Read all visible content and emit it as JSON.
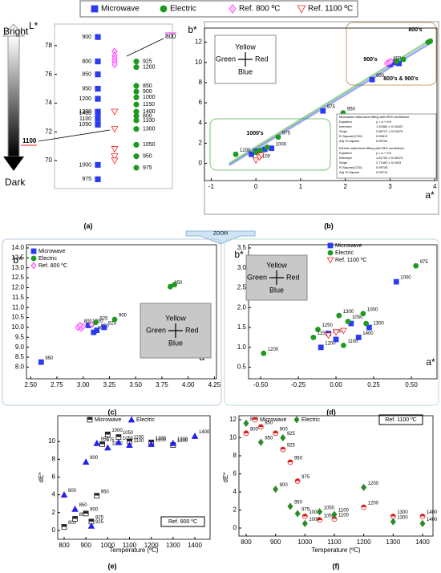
{
  "chart_data": [
    {
      "type": "strip",
      "caption": "(a)",
      "y_label": "L*",
      "top_label": "Bright",
      "bottom_label": "Dark",
      "ylim": [
        68.05,
        79.5
      ],
      "yticks": [
        70,
        72,
        74,
        76,
        78
      ],
      "annotations": [
        "800",
        "1100"
      ],
      "series": [
        {
          "name": "Microwave",
          "color": "#2b3cf0",
          "marker": "square",
          "values": [
            78.6,
            76.9,
            76.0,
            75.0,
            74.3,
            73.4,
            73.3,
            72.9,
            72.5,
            69.7,
            68.7
          ],
          "labels": [
            "900",
            "800",
            "850",
            "950",
            "1200",
            "1300",
            "1400",
            "1100",
            "1050",
            "1000",
            "975"
          ]
        },
        {
          "name": "Electric",
          "color": "#1e9a1e",
          "marker": "circle",
          "values": [
            76.9,
            76.5,
            74.8,
            75.2,
            74.4,
            73.9,
            73.4,
            73.1,
            72.8,
            72.2,
            71.1,
            70.3,
            69.5
          ],
          "labels": [
            "925",
            "1200",
            "900",
            "850",
            "1000",
            "1150",
            "1400",
            "800",
            "1100",
            "1300",
            "1050",
            "950",
            "975"
          ]
        },
        {
          "name": "Ref. 800 ºC",
          "color": "#ff33ff",
          "marker": "diamond",
          "values": [
            77.6,
            77.3,
            77.1,
            76.9,
            76.7
          ]
        },
        {
          "name": "Ref. 1100 ºC",
          "color": "#ff2020",
          "marker": "tri-down",
          "values": [
            73.4,
            72.2,
            70.8,
            70.3,
            70.0
          ]
        }
      ]
    },
    {
      "type": "scatter",
      "caption": "(b)",
      "x_label": "a*",
      "y_label": "b*",
      "xlim": [
        -1.15,
        4.05
      ],
      "xticks": [
        -1,
        0,
        1,
        2,
        3,
        4
      ],
      "ylim": [
        -1.7,
        13.4
      ],
      "yticks": [
        0,
        2,
        4,
        6,
        8,
        10,
        12
      ],
      "compass": {
        "top": "Yellow",
        "left": "Green",
        "right": "Red",
        "bottom": "Blue"
      },
      "annotations": [
        "800's",
        "900's",
        "800's & 900's",
        "1000's"
      ],
      "fit_tables": [
        {
          "title": "Microwave data linear fitting with 95% confidence",
          "rows": [
            [
              "Equation",
              "y = a + b*x"
            ],
            [
              "Intercept",
              "1.42684 ± 0.04022"
            ],
            [
              "Slope",
              "2.68727 ± 0.03479"
            ],
            [
              "R-Square(COD)",
              "0.99812"
            ],
            [
              "Adj. R-Square",
              "0.99794"
            ]
          ]
        },
        {
          "title": "Electric data linear fitting with 95% confidence",
          "rows": [
            [
              "Equation",
              "y = a + b*x"
            ],
            [
              "Intercept",
              "1.61702 ± 0.08474"
            ],
            [
              "Slope",
              "2.71462 ± 0.0403"
            ],
            [
              "R-Square(COD)",
              "0.99736"
            ],
            [
              "Adj. R-Square",
              "0.99714"
            ]
          ]
        }
      ],
      "series": [
        {
          "color": "#2b3cf0",
          "marker": "square",
          "fit": {
            "intercept": 1.42684,
            "slope": 2.68727
          },
          "x": [
            1.5,
            2.6,
            3.0,
            3.1,
            3.2,
            0.0,
            0.2,
            0.35,
            -0.1
          ],
          "values": [
            5.2,
            8.3,
            9.8,
            10.0,
            9.9,
            1.2,
            1.4,
            1.5,
            0.9
          ],
          "labels": [
            "975",
            "950",
            null,
            null,
            null,
            null,
            null,
            "1000",
            null
          ]
        },
        {
          "color": "#1e9a1e",
          "marker": "circle",
          "fit": {
            "intercept": 1.61702,
            "slope": 2.71462
          },
          "x": [
            3.85,
            3.9,
            3.3,
            3.15,
            1.95,
            0.5,
            -0.45,
            0.0,
            0.1,
            0.25
          ],
          "values": [
            12.0,
            12.1,
            10.3,
            10.1,
            5.0,
            2.6,
            0.9,
            1.1,
            1.3,
            1.6
          ],
          "labels": [
            null,
            null,
            null,
            null,
            "950",
            "975",
            "1200",
            null,
            null,
            null
          ]
        },
        {
          "color": "#ff33ff",
          "marker": "diamond",
          "x": [
            2.93,
            2.98,
            3.02
          ],
          "values": [
            9.9,
            10.0,
            10.1
          ],
          "labels": [
            null,
            "800",
            null
          ]
        },
        {
          "color": "#ff2020",
          "marker": "tri-down",
          "x": [
            0.0,
            0.08,
            0.12
          ],
          "values": [
            0.3,
            0.6,
            0.8
          ],
          "labels": [
            "1100",
            null,
            null
          ]
        }
      ]
    },
    {
      "type": "scatter",
      "caption": "(c)",
      "x_label": "a*",
      "y_label": "b*",
      "xlim": [
        2.46,
        4.27
      ],
      "xticks": [
        {
          "value": 2.5,
          "label": "2.50"
        },
        2.75,
        {
          "value": 3,
          "label": "3.00"
        },
        3.25,
        {
          "value": 3.5,
          "label": "3.50"
        },
        3.75,
        {
          "value": 4,
          "label": "4.00"
        },
        4.25
      ],
      "ylim": [
        7.41,
        14.16
      ],
      "yticks": [
        {
          "value": 8,
          "label": "8.0"
        },
        8.5,
        {
          "value": 9,
          "label": "9.0"
        },
        9.5,
        {
          "value": 10,
          "label": "10.0"
        },
        10.5,
        {
          "value": 11,
          "label": "11.0"
        },
        11.5,
        {
          "value": 12,
          "label": "12.0"
        },
        12.5,
        {
          "value": 13,
          "label": "13.0"
        },
        13.5,
        {
          "value": 14,
          "label": "14.0"
        }
      ],
      "compass": {
        "top": "Yellow",
        "left": "Green",
        "right": "Red",
        "bottom": "Blue"
      },
      "series": [
        {
          "name": "Microwave",
          "color": "#2b3cf0",
          "marker": "square",
          "x": [
            2.6,
            3.1,
            3.13,
            3.2,
            3.05
          ],
          "values": [
            8.25,
            9.75,
            9.85,
            10.0,
            10.1
          ],
          "labels": [
            "950",
            "900",
            "850",
            "925",
            "1000"
          ]
        },
        {
          "name": "Electric",
          "color": "#1e9a1e",
          "marker": "circle",
          "x": [
            3.83,
            3.87,
            3.3,
            3.12,
            3.08
          ],
          "values": [
            12.05,
            12.15,
            10.4,
            10.25,
            10.15
          ],
          "labels": [
            "850",
            null,
            "900",
            "925",
            null
          ]
        },
        {
          "name": "Ref. 800 ºC",
          "color": "#ff33ff",
          "marker": "diamond",
          "x": [
            2.95,
            2.98,
            3.0,
            2.97,
            3.08
          ],
          "values": [
            10.0,
            9.95,
            10.05,
            10.1,
            10.15
          ],
          "labels": [
            null,
            null,
            null,
            "800",
            null
          ]
        }
      ]
    },
    {
      "type": "scatter",
      "caption": "(d)",
      "x_label": "a*",
      "y_label": "b*",
      "xlim": [
        -0.58,
        0.67
      ],
      "xticks": [
        {
          "value": -0.5,
          "label": "-0.50"
        },
        -0.25,
        {
          "value": 0,
          "label": "0.00"
        },
        0.25,
        {
          "value": 0.5,
          "label": "0.50"
        }
      ],
      "ylim": [
        0.21,
        3.58
      ],
      "yticks": [
        0.5,
        {
          "value": 1,
          "label": "1.0"
        },
        1.5,
        {
          "value": 2,
          "label": "2.0"
        },
        2.5,
        {
          "value": 3,
          "label": "3.0"
        },
        3.5
      ],
      "compass": {
        "top": "Yellow",
        "left": "Green",
        "right": "Red",
        "bottom": "Blue"
      },
      "series": [
        {
          "name": "Microwave",
          "color": "#2b3cf0",
          "marker": "square",
          "x": [
            0.4,
            0.22,
            0.15,
            -0.1,
            0.1,
            -0.05,
            0.0
          ],
          "values": [
            2.65,
            1.5,
            1.25,
            1.0,
            1.6,
            1.35,
            1.2
          ],
          "labels": [
            "1000",
            "1300",
            "1400",
            "1200",
            null,
            null,
            null
          ]
        },
        {
          "name": "Electric",
          "color": "#1e9a1e",
          "marker": "circle",
          "x": [
            0.53,
            -0.48,
            0.02,
            0.08,
            0.18,
            0.2,
            -0.12,
            -0.15,
            0.05
          ],
          "values": [
            3.05,
            0.85,
            1.8,
            1.65,
            1.85,
            1.6,
            1.45,
            1.25,
            1.05
          ],
          "labels": [
            "975",
            "1200",
            "1300",
            "1050",
            "1000",
            null,
            "1250",
            "1150",
            "1100"
          ]
        },
        {
          "name": "Ref. 1100 ºC",
          "color": "#ff2020",
          "marker": "tri-down",
          "x": [
            -0.05,
            0.0,
            0.05
          ],
          "values": [
            1.3,
            1.38,
            1.42
          ],
          "labels": [
            "1100",
            null,
            null
          ]
        }
      ]
    },
    {
      "type": "scatter",
      "caption": "(e)",
      "x_label": "Temperature (ºC)",
      "y_label": "dE*",
      "ref_label": "Ref. 800 ºC",
      "xlim": [
        770.6,
        1469.9
      ],
      "xticks": [
        800,
        900,
        1000,
        1100,
        1200,
        1300,
        1400
      ],
      "ylim": [
        -1,
        12.9
      ],
      "yticks": [
        0,
        2,
        4,
        6,
        8,
        10
      ],
      "series": [
        {
          "name": "Microwave",
          "color": "#222222",
          "marker": "half-square",
          "x": [
            800,
            850,
            900,
            925,
            950,
            975,
            1000,
            1050,
            1100,
            1200,
            1300
          ],
          "values": [
            0.4,
            1.3,
            1.9,
            1.0,
            3.9,
            9.7,
            10.8,
            10.5,
            10.0,
            9.9,
            9.6
          ],
          "labels": [
            "800",
            "850",
            "900",
            "925",
            "950",
            "975",
            "1000",
            "1050",
            "1100",
            "1200",
            "1300"
          ]
        },
        {
          "name": "Electric",
          "color": "#2222ee",
          "marker": "tri-up",
          "x": [
            800,
            850,
            900,
            925,
            950,
            1000,
            1050,
            1100,
            1200,
            1300,
            1400
          ],
          "values": [
            4.0,
            2.4,
            7.7,
            0.5,
            9.8,
            9.3,
            9.9,
            9.6,
            9.7,
            9.8,
            10.6
          ],
          "labels": [
            "800",
            "850",
            "900",
            "925",
            "950",
            "1000",
            "1050",
            "1100",
            "1200",
            "1300",
            "1400"
          ]
        }
      ]
    },
    {
      "type": "scatter",
      "caption": "(f)",
      "x_label": "Temperature (ºC)",
      "y_label": "dE*",
      "ref_label": "Ref. 1100 ºC",
      "xlim": [
        775.5,
        1435.5
      ],
      "xticks": [
        800,
        900,
        1000,
        1100,
        1200,
        1300,
        1400
      ],
      "ylim": [
        -0.89,
        12.44
      ],
      "yticks": [
        0,
        2,
        4,
        6,
        8,
        10,
        12
      ],
      "series": [
        {
          "name": "Microwave",
          "color": "#e02020",
          "marker": "half-circle",
          "x": [
            800,
            850,
            900,
            925,
            950,
            975,
            1000,
            1050,
            1100,
            1200,
            1300,
            1400
          ],
          "values": [
            10.5,
            11.2,
            10.5,
            8.7,
            7.3,
            5.2,
            1.3,
            0.9,
            1.0,
            2.3,
            1.3,
            1.3
          ],
          "labels": [
            "800",
            "850",
            "900",
            "925",
            "950",
            "975",
            "1000",
            "1050",
            "1100",
            "1200",
            "1300",
            "1400"
          ]
        },
        {
          "name": "Electric",
          "color": "#2a8a2a",
          "marker": "diamond-fill",
          "x": [
            800,
            850,
            900,
            925,
            950,
            975,
            1000,
            1050,
            1100,
            1200,
            1300,
            1400
          ],
          "values": [
            11.6,
            9.5,
            4.3,
            10.0,
            2.4,
            1.6,
            0.5,
            1.8,
            1.5,
            4.5,
            0.7,
            0.5
          ],
          "labels": [
            "800",
            "850",
            "900",
            "925",
            "950",
            "975",
            "1000",
            "1050",
            "1100",
            "1200",
            "1300",
            "1400"
          ]
        }
      ]
    }
  ]
}
